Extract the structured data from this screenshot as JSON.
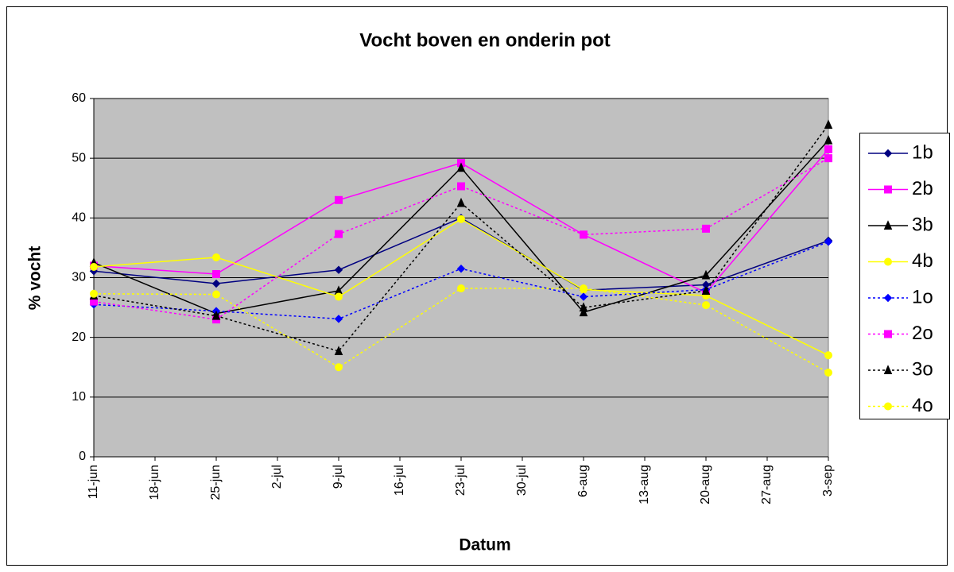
{
  "chart_data": {
    "type": "line",
    "title": "Vocht boven en onderin pot",
    "x_label": "Datum",
    "y_label": "% vocht",
    "x": [
      "11-jun",
      "25-jun",
      "9-jul",
      "23-jul",
      "6-aug",
      "20-aug",
      "3-sep"
    ],
    "xticks": [
      "11-jun",
      "18-jun",
      "25-jun",
      "2-jul",
      "9-jul",
      "16-jul",
      "23-jul",
      "30-jul",
      "6-aug",
      "13-aug",
      "20-aug",
      "27-aug",
      "3-sep"
    ],
    "ylim": [
      0,
      60
    ],
    "yticks": [
      0,
      10,
      20,
      30,
      40,
      50,
      60
    ],
    "grid": true,
    "legend": "right",
    "series": [
      {
        "name": "1b",
        "color": "#000080",
        "dash": "solid",
        "marker": "diamond",
        "values": [
          31.1,
          29.0,
          31.3,
          40.0,
          27.9,
          28.8,
          36.2
        ]
      },
      {
        "name": "2b",
        "color": "#ff00ff",
        "dash": "solid",
        "marker": "square",
        "values": [
          32.0,
          30.6,
          43.0,
          49.2,
          37.2,
          27.5,
          51.5
        ]
      },
      {
        "name": "3b",
        "color": "#000000",
        "dash": "solid",
        "marker": "triangle",
        "values": [
          32.5,
          24.0,
          27.8,
          48.4,
          24.2,
          30.4,
          53.0
        ]
      },
      {
        "name": "4b",
        "color": "#ffff00",
        "dash": "solid",
        "marker": "circle",
        "values": [
          31.8,
          33.4,
          26.8,
          39.8,
          28.0,
          27.0,
          17.0
        ]
      },
      {
        "name": "1o",
        "color": "#0000ff",
        "dash": "dotted",
        "marker": "diamond",
        "values": [
          25.5,
          24.4,
          23.1,
          31.5,
          26.8,
          28.0,
          36.0
        ]
      },
      {
        "name": "2o",
        "color": "#ff00ff",
        "dash": "dotted",
        "marker": "square",
        "values": [
          26.0,
          23.0,
          37.3,
          45.3,
          37.2,
          38.2,
          50.0
        ]
      },
      {
        "name": "3o",
        "color": "#000000",
        "dash": "dotted",
        "marker": "triangle",
        "values": [
          27.0,
          23.6,
          17.7,
          42.5,
          25.0,
          27.8,
          55.6
        ]
      },
      {
        "name": "4o",
        "color": "#ffff00",
        "dash": "dotted",
        "marker": "circle",
        "values": [
          27.3,
          27.2,
          15.0,
          28.2,
          28.2,
          25.4,
          14.1
        ]
      }
    ]
  }
}
